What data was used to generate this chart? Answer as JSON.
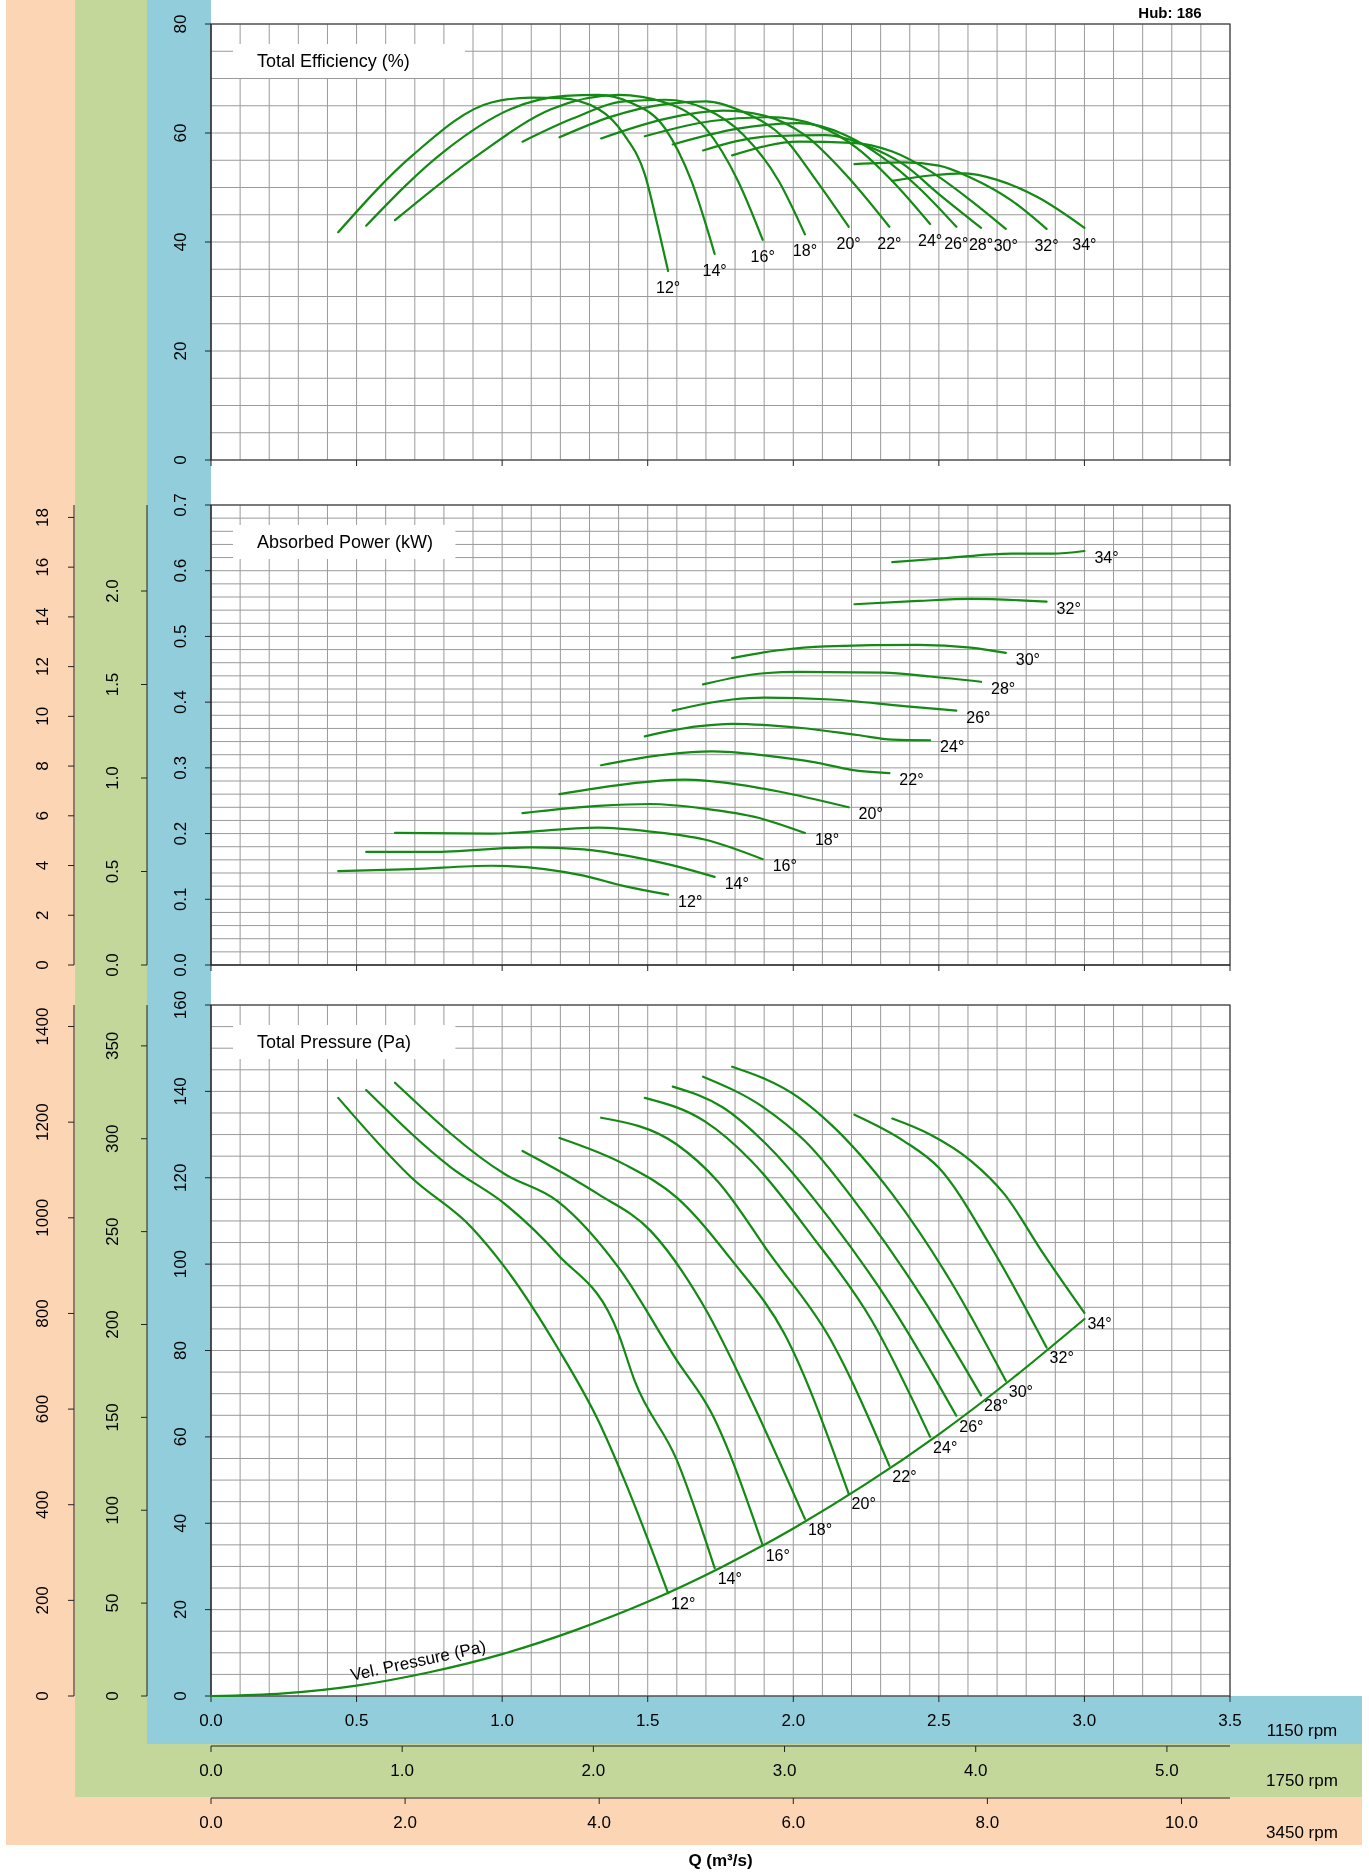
{
  "chart_data": [
    {
      "type": "line",
      "title": "Total Efficiency (%)",
      "annotations": [
        "Hub: 186"
      ],
      "xlim": [
        0,
        3.5
      ],
      "xticks": [
        0,
        0.5,
        1,
        1.5,
        2,
        2.5,
        3,
        3.5
      ],
      "ylim": [
        0,
        80
      ],
      "yticks": [
        0,
        20,
        40,
        60,
        80
      ],
      "grid": true,
      "tick_labels": "y",
      "series": [
        {
          "name": "12°",
          "color": "#138a13",
          "x": [
            0.437,
            0.69,
            0.963,
            1.1,
            1.2,
            1.33,
            1.42,
            1.49,
            1.535,
            1.57
          ],
          "values": [
            41.8,
            55.8,
            65.6,
            66.5,
            66.4,
            64.4,
            59.6,
            52.4,
            42.8,
            34.7
          ]
        },
        {
          "name": "14°",
          "color": "#138a13",
          "x": [
            0.533,
            0.8,
            1.03,
            1.215,
            1.33,
            1.44,
            1.56,
            1.65,
            1.73
          ],
          "values": [
            43,
            56.6,
            64.4,
            66.8,
            67,
            65.6,
            60.8,
            51.2,
            37.8
          ]
        },
        {
          "name": "16°",
          "color": "#138a13",
          "x": [
            0.632,
            0.918,
            1.17,
            1.4,
            1.56,
            1.7,
            1.81,
            1.895
          ],
          "values": [
            44,
            56,
            64.4,
            67,
            65.6,
            60.8,
            51.2,
            40.4
          ]
        },
        {
          "name": "18°",
          "color": "#138a13",
          "x": [
            1.07,
            1.24,
            1.42,
            1.56,
            1.7,
            1.83,
            1.95,
            2.04
          ],
          "values": [
            58.4,
            62.6,
            65.8,
            66.1,
            64.4,
            59.6,
            51.2,
            41.4
          ]
        },
        {
          "name": "20°",
          "color": "#138a13",
          "x": [
            1.197,
            1.375,
            1.56,
            1.7,
            1.83,
            1.97,
            2.08,
            2.19
          ],
          "values": [
            59.2,
            63,
            65.3,
            65.8,
            63.8,
            59,
            51.2,
            42.8
          ]
        },
        {
          "name": "22°",
          "color": "#138a13",
          "x": [
            1.34,
            1.56,
            1.76,
            1.9,
            2.04,
            2.18,
            2.33
          ],
          "values": [
            59,
            62.6,
            64.1,
            63.2,
            59.6,
            52.4,
            42.8
          ]
        },
        {
          "name": "24°",
          "color": "#138a13",
          "x": [
            1.49,
            1.72,
            1.92,
            2.08,
            2.22,
            2.34,
            2.47
          ],
          "values": [
            59.4,
            62.2,
            62.9,
            61.4,
            57.2,
            51.2,
            43.3
          ]
        },
        {
          "name": "26°",
          "color": "#138a13",
          "x": [
            1.586,
            1.81,
            2.02,
            2.18,
            2.31,
            2.43,
            2.56
          ],
          "values": [
            57.9,
            60.8,
            61.8,
            59.6,
            55.4,
            50,
            42.8
          ]
        },
        {
          "name": "28°",
          "color": "#138a13",
          "x": [
            1.69,
            1.92,
            2.11,
            2.245,
            2.38,
            2.5,
            2.645
          ],
          "values": [
            56.8,
            59.4,
            59.6,
            57.8,
            54.2,
            48.8,
            42.6
          ]
        },
        {
          "name": "30°",
          "color": "#138a13",
          "x": [
            1.79,
            2.02,
            2.2,
            2.34,
            2.47,
            2.61,
            2.73
          ],
          "values": [
            55.9,
            58.4,
            58.2,
            56.6,
            53,
            47.6,
            42.4
          ]
        },
        {
          "name": "32°",
          "color": "#138a13",
          "x": [
            2.21,
            2.38,
            2.5,
            2.61,
            2.75,
            2.87
          ],
          "values": [
            54.3,
            54.6,
            54,
            51.8,
            47.6,
            42.4
          ]
        },
        {
          "name": "34°",
          "color": "#138a13",
          "x": [
            2.34,
            2.47,
            2.59,
            2.7,
            2.84,
            3.0
          ],
          "values": [
            51.2,
            52.2,
            52.6,
            51.4,
            48.2,
            42.6
          ]
        }
      ]
    },
    {
      "type": "line",
      "title": "Absorbed Power (kW)",
      "xlim": [
        0,
        3.5
      ],
      "xticks": [
        0,
        0.5,
        1,
        1.5,
        2,
        2.5,
        3,
        3.5
      ],
      "ylim": [
        0,
        0.7
      ],
      "yticks": [
        {
          "value": 0,
          "label": "0.0"
        },
        0.1,
        0.2,
        0.3,
        0.4,
        0.5,
        0.6,
        0.7
      ],
      "y2lim": [
        0,
        2.46
      ],
      "y2ticks": [
        {
          "value": 0,
          "label": "0.0"
        },
        0.5,
        {
          "value": 1,
          "label": "1.0"
        },
        1.5,
        {
          "value": 2,
          "label": "2.0"
        }
      ],
      "grid": true,
      "tick_labels": "y",
      "series": [
        {
          "name": "12°",
          "color": "#138a13",
          "x": [
            0.437,
            0.69,
            0.963,
            1.146,
            1.28,
            1.42,
            1.57
          ],
          "values": [
            0.143,
            0.146,
            0.151,
            0.146,
            0.136,
            0.12,
            0.107
          ]
        },
        {
          "name": "14°",
          "color": "#138a13",
          "x": [
            0.533,
            0.757,
            1.1,
            1.28,
            1.467,
            1.61,
            1.73
          ],
          "values": [
            0.172,
            0.172,
            0.179,
            0.176,
            0.163,
            0.149,
            0.134
          ]
        },
        {
          "name": "16°",
          "color": "#138a13",
          "x": [
            0.632,
            0.963,
            1.33,
            1.51,
            1.695,
            1.895
          ],
          "values": [
            0.201,
            0.2,
            0.209,
            0.203,
            0.191,
            0.161
          ]
        },
        {
          "name": "18°",
          "color": "#138a13",
          "x": [
            1.07,
            1.33,
            1.51,
            1.695,
            1.88,
            2.04
          ],
          "values": [
            0.231,
            0.242,
            0.245,
            0.238,
            0.224,
            0.201
          ]
        },
        {
          "name": "20°",
          "color": "#138a13",
          "x": [
            1.197,
            1.42,
            1.627,
            1.79,
            1.95,
            2.19
          ],
          "values": [
            0.26,
            0.275,
            0.282,
            0.276,
            0.264,
            0.24
          ]
        },
        {
          "name": "22°",
          "color": "#138a13",
          "x": [
            1.34,
            1.56,
            1.72,
            1.9,
            2.08,
            2.2,
            2.33
          ],
          "values": [
            0.304,
            0.32,
            0.325,
            0.319,
            0.308,
            0.297,
            0.292
          ]
        },
        {
          "name": "24°",
          "color": "#138a13",
          "x": [
            1.49,
            1.67,
            1.79,
            2.02,
            2.22,
            2.34,
            2.47
          ],
          "values": [
            0.348,
            0.363,
            0.367,
            0.361,
            0.35,
            0.343,
            0.342
          ]
        },
        {
          "name": "26°",
          "color": "#138a13",
          "x": [
            1.586,
            1.79,
            1.9,
            2.13,
            2.38,
            2.56
          ],
          "values": [
            0.387,
            0.404,
            0.407,
            0.404,
            0.394,
            0.387
          ]
        },
        {
          "name": "28°",
          "color": "#138a13",
          "x": [
            1.69,
            1.9,
            2.02,
            2.31,
            2.47,
            2.645
          ],
          "values": [
            0.427,
            0.444,
            0.446,
            0.445,
            0.439,
            0.431
          ]
        },
        {
          "name": "30°",
          "color": "#138a13",
          "x": [
            1.79,
            1.95,
            2.11,
            2.43,
            2.61,
            2.73
          ],
          "values": [
            0.467,
            0.479,
            0.485,
            0.487,
            0.483,
            0.475
          ]
        },
        {
          "name": "32°",
          "color": "#138a13",
          "x": [
            2.21,
            2.43,
            2.61,
            2.87
          ],
          "values": [
            0.549,
            0.554,
            0.557,
            0.553
          ]
        },
        {
          "name": "34°",
          "color": "#138a13",
          "x": [
            2.34,
            2.52,
            2.75,
            2.89,
            3.0
          ],
          "values": [
            0.613,
            0.619,
            0.626,
            0.626,
            0.63
          ]
        }
      ]
    },
    {
      "type": "line",
      "title": "Total Pressure (Pa)",
      "annotations": [
        "Q (m³/s)"
      ],
      "xlabel": "1150 rpm",
      "x2label": "1750 rpm",
      "xlim": [
        0,
        3.5
      ],
      "xticks": [
        {
          "value": 0,
          "label": "0.0"
        },
        {
          "value": 0.5,
          "label": "0.5"
        },
        {
          "value": 1,
          "label": "1.0"
        },
        {
          "value": 1.5,
          "label": "1.5"
        },
        {
          "value": 2,
          "label": "2.0"
        },
        {
          "value": 2.5,
          "label": "2.5"
        },
        {
          "value": 3,
          "label": "3.0"
        },
        {
          "value": 3.5,
          "label": "3.5"
        }
      ],
      "x2lim": [
        0,
        5.33
      ],
      "x2ticks": [
        {
          "value": 0,
          "label": "0.0"
        },
        {
          "value": 1,
          "label": "1.0"
        },
        {
          "value": 2,
          "label": "2.0"
        },
        {
          "value": 3,
          "label": "3.0"
        },
        {
          "value": 4,
          "label": "4.0"
        },
        {
          "value": 5,
          "label": "5.0"
        }
      ],
      "ylim": [
        0,
        160
      ],
      "yticks": [
        0,
        20,
        40,
        60,
        80,
        100,
        120,
        140,
        160
      ],
      "y2lim": [
        0,
        372
      ],
      "y2ticks": [
        0,
        50,
        100,
        150,
        200,
        250,
        300,
        350
      ],
      "grid": true,
      "series": [
        {
          "name": "12°",
          "color": "#138a13",
          "x": [
            0.437,
            0.689,
            0.895,
            1.01,
            1.19,
            1.33,
            1.42,
            1.57
          ],
          "values": [
            138.5,
            120,
            108.5,
            99.2,
            80.7,
            63.8,
            50,
            23.8
          ]
        },
        {
          "name": "14°",
          "color": "#138a13",
          "x": [
            0.533,
            0.826,
            1.01,
            1.19,
            1.4,
            1.455,
            1.6,
            1.73
          ],
          "values": [
            140.3,
            122.3,
            113.9,
            102.3,
            83.8,
            73,
            54.6,
            29.6
          ]
        },
        {
          "name": "16°",
          "color": "#138a13",
          "x": [
            0.632,
            1.01,
            1.19,
            1.4,
            1.6,
            1.72,
            1.895
          ],
          "values": [
            142,
            120.8,
            114.6,
            99.2,
            77.7,
            65.4,
            34.9
          ]
        },
        {
          "name": "18°",
          "color": "#138a13",
          "x": [
            1.07,
            1.33,
            1.51,
            1.695,
            1.856,
            2.04
          ],
          "values": [
            126.2,
            116.2,
            107.7,
            90,
            68.4,
            41
          ]
        },
        {
          "name": "20°",
          "color": "#138a13",
          "x": [
            1.197,
            1.42,
            1.6,
            1.79,
            1.97,
            2.19
          ],
          "values": [
            129.2,
            123.1,
            115.4,
            100.8,
            83.8,
            46.9
          ]
        },
        {
          "name": "22°",
          "color": "#138a13",
          "x": [
            1.34,
            1.6,
            1.74,
            1.92,
            2.13,
            2.33
          ],
          "values": [
            133.9,
            127.7,
            119.2,
            102.3,
            82.3,
            53.3
          ]
        },
        {
          "name": "24°",
          "color": "#138a13",
          "x": [
            1.49,
            1.695,
            1.856,
            2.06,
            2.27,
            2.47
          ],
          "values": [
            138.5,
            133.1,
            123.9,
            106.9,
            86.9,
            60
          ]
        },
        {
          "name": "26°",
          "color": "#138a13",
          "x": [
            1.586,
            1.76,
            1.92,
            2.13,
            2.34,
            2.56
          ],
          "values": [
            141.1,
            136.2,
            126.9,
            110,
            90,
            64.9
          ]
        },
        {
          "name": "28°",
          "color": "#138a13",
          "x": [
            1.69,
            1.9,
            2.04,
            2.245,
            2.45,
            2.645
          ],
          "values": [
            143.4,
            136.2,
            128.5,
            111.5,
            91.5,
            69.6
          ]
        },
        {
          "name": "30°",
          "color": "#138a13",
          "x": [
            1.79,
            2.02,
            2.13,
            2.34,
            2.54,
            2.73
          ],
          "values": [
            145.7,
            138.5,
            132.3,
            116.2,
            96.1,
            73
          ]
        },
        {
          "name": "32°",
          "color": "#138a13",
          "x": [
            2.21,
            2.38,
            2.5,
            2.68,
            2.87
          ],
          "values": [
            134.6,
            128.5,
            122.3,
            103.9,
            80.7
          ]
        },
        {
          "name": "34°",
          "color": "#138a13",
          "x": [
            2.34,
            2.47,
            2.61,
            2.725,
            2.86,
            3.0
          ],
          "values": [
            133.7,
            130,
            123.9,
            116.2,
            102.3,
            88.7
          ]
        },
        {
          "name": "Vel. Pressure (Pa)",
          "color": "#138a13",
          "x": [
            0,
            0.25,
            0.5,
            0.75,
            1,
            1.25,
            1.5,
            1.75,
            2,
            2.25,
            2.5,
            2.75,
            3
          ],
          "values": [
            0,
            0.6,
            2.4,
            5.5,
            9.7,
            15.2,
            21.8,
            29.7,
            38.8,
            49.1,
            60.6,
            73.4,
            87.3
          ]
        }
      ]
    },
    {
      "type": "line",
      "xlabel": "3450 rpm",
      "xlim": [
        0,
        10.5
      ],
      "xticks": [
        {
          "value": 0,
          "label": "0.0"
        },
        {
          "value": 2,
          "label": "2.0"
        },
        {
          "value": 4,
          "label": "4.0"
        },
        {
          "value": 6,
          "label": "6.0"
        },
        {
          "value": 8,
          "label": "8.0"
        },
        {
          "value": 10,
          "label": "10.0"
        }
      ],
      "ylim": [
        0,
        1445
      ],
      "yticks": [
        0,
        200,
        400,
        600,
        800,
        1000,
        1200,
        1400
      ]
    },
    {
      "type": "line",
      "xlim": [
        0,
        10.5
      ],
      "tick_labels": "y",
      "ylim": [
        0,
        18.5
      ],
      "yticks": [
        0,
        2,
        4,
        6,
        8,
        10,
        12,
        14,
        16,
        18
      ]
    }
  ]
}
